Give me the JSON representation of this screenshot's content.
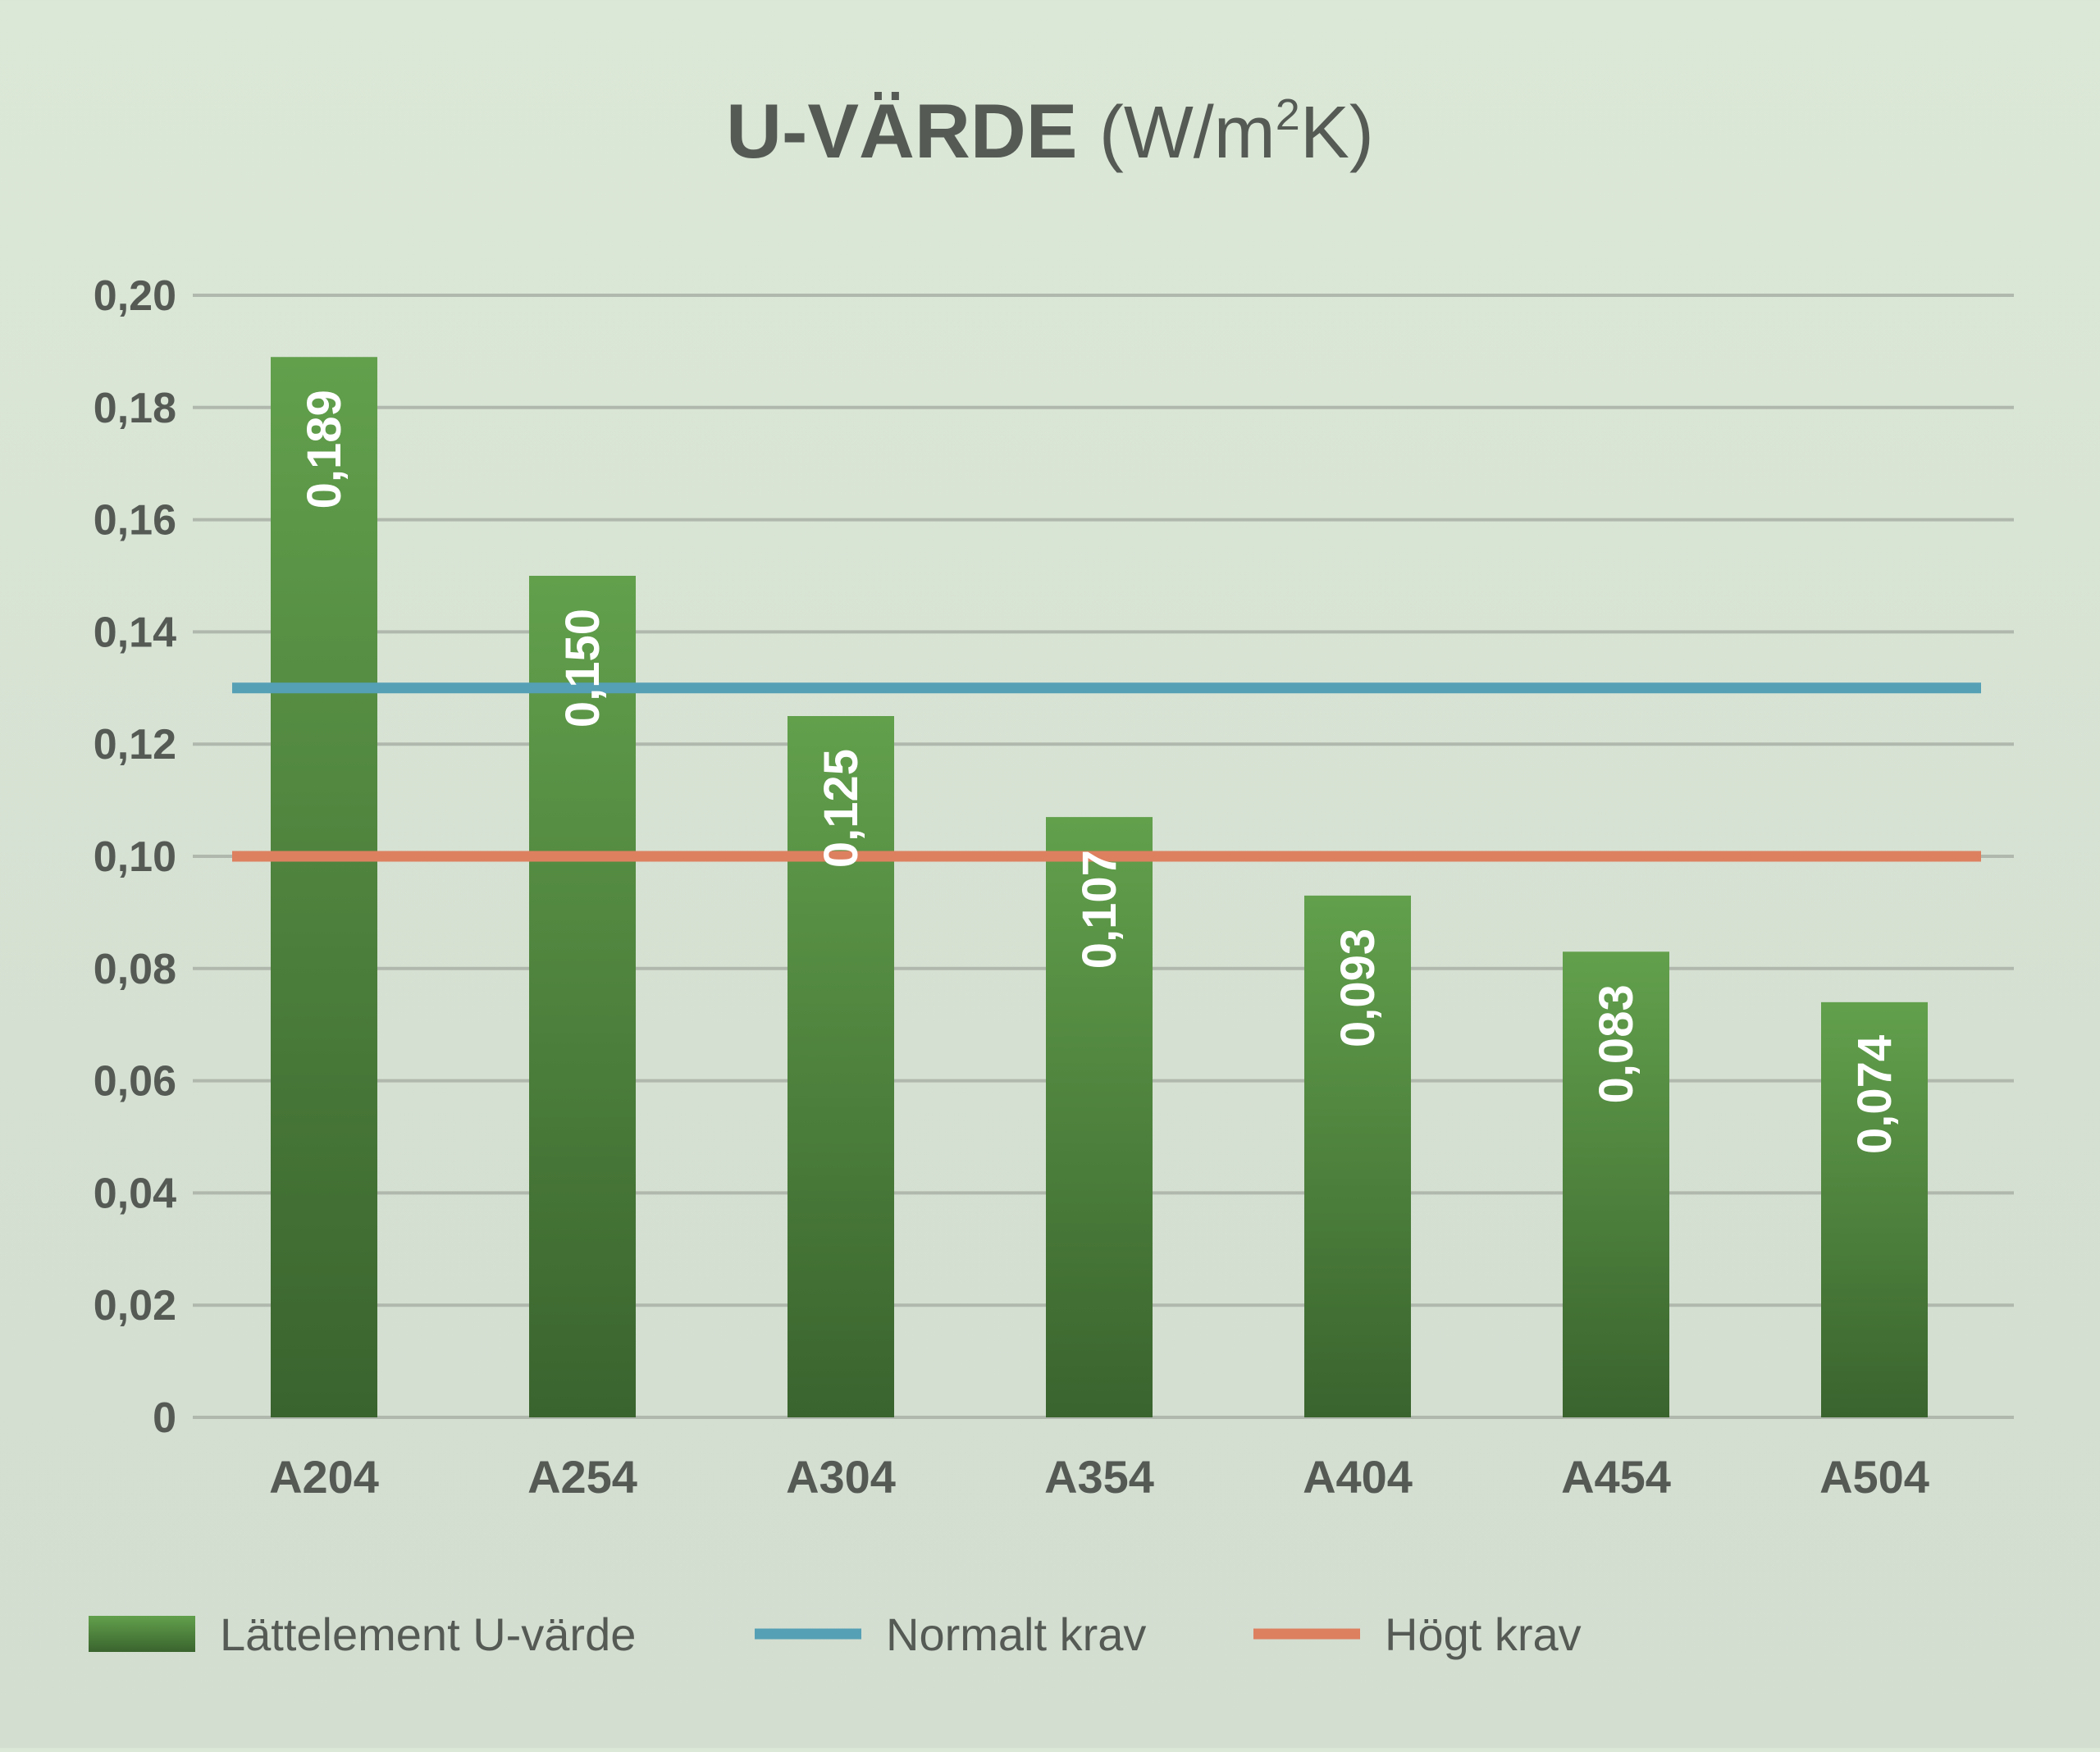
{
  "chart_data": {
    "type": "bar",
    "title": "U-VÄRDE",
    "subtitle": "(W/m²K)",
    "title_unit_prefix": "(W/m",
    "title_unit_sup": "2",
    "title_unit_suffix": "K)",
    "categories": [
      "A204",
      "A254",
      "A304",
      "A354",
      "A404",
      "A454",
      "A504"
    ],
    "series": [
      {
        "name": "Lättelement U-värde",
        "values": [
          0.189,
          0.15,
          0.125,
          0.107,
          0.093,
          0.083,
          0.074
        ],
        "labels": [
          "0,189",
          "0,150",
          "0,125",
          "0,107",
          "0,093",
          "0,083",
          "0,074"
        ],
        "color_top": "#62a04c",
        "color_bottom": "#3a642e"
      }
    ],
    "reference_lines": [
      {
        "name": "Normalt krav",
        "value": 0.13,
        "color": "#56a0b5"
      },
      {
        "name": "Högt krav",
        "value": 0.1,
        "color": "#dd8060"
      }
    ],
    "ylim": [
      0,
      0.2
    ],
    "yticks": [
      0,
      0.02,
      0.04,
      0.06,
      0.08,
      0.1,
      0.12,
      0.14,
      0.16,
      0.18,
      0.2
    ],
    "ytick_labels": [
      "0",
      "0,02",
      "0,04",
      "0,06",
      "0,08",
      "0,10",
      "0,12",
      "0,14",
      "0,16",
      "0,18",
      "0,20"
    ],
    "grid": true,
    "grid_color": "#b0b8ad",
    "legend_position": "bottom-left",
    "xlabel": "",
    "ylabel": ""
  }
}
